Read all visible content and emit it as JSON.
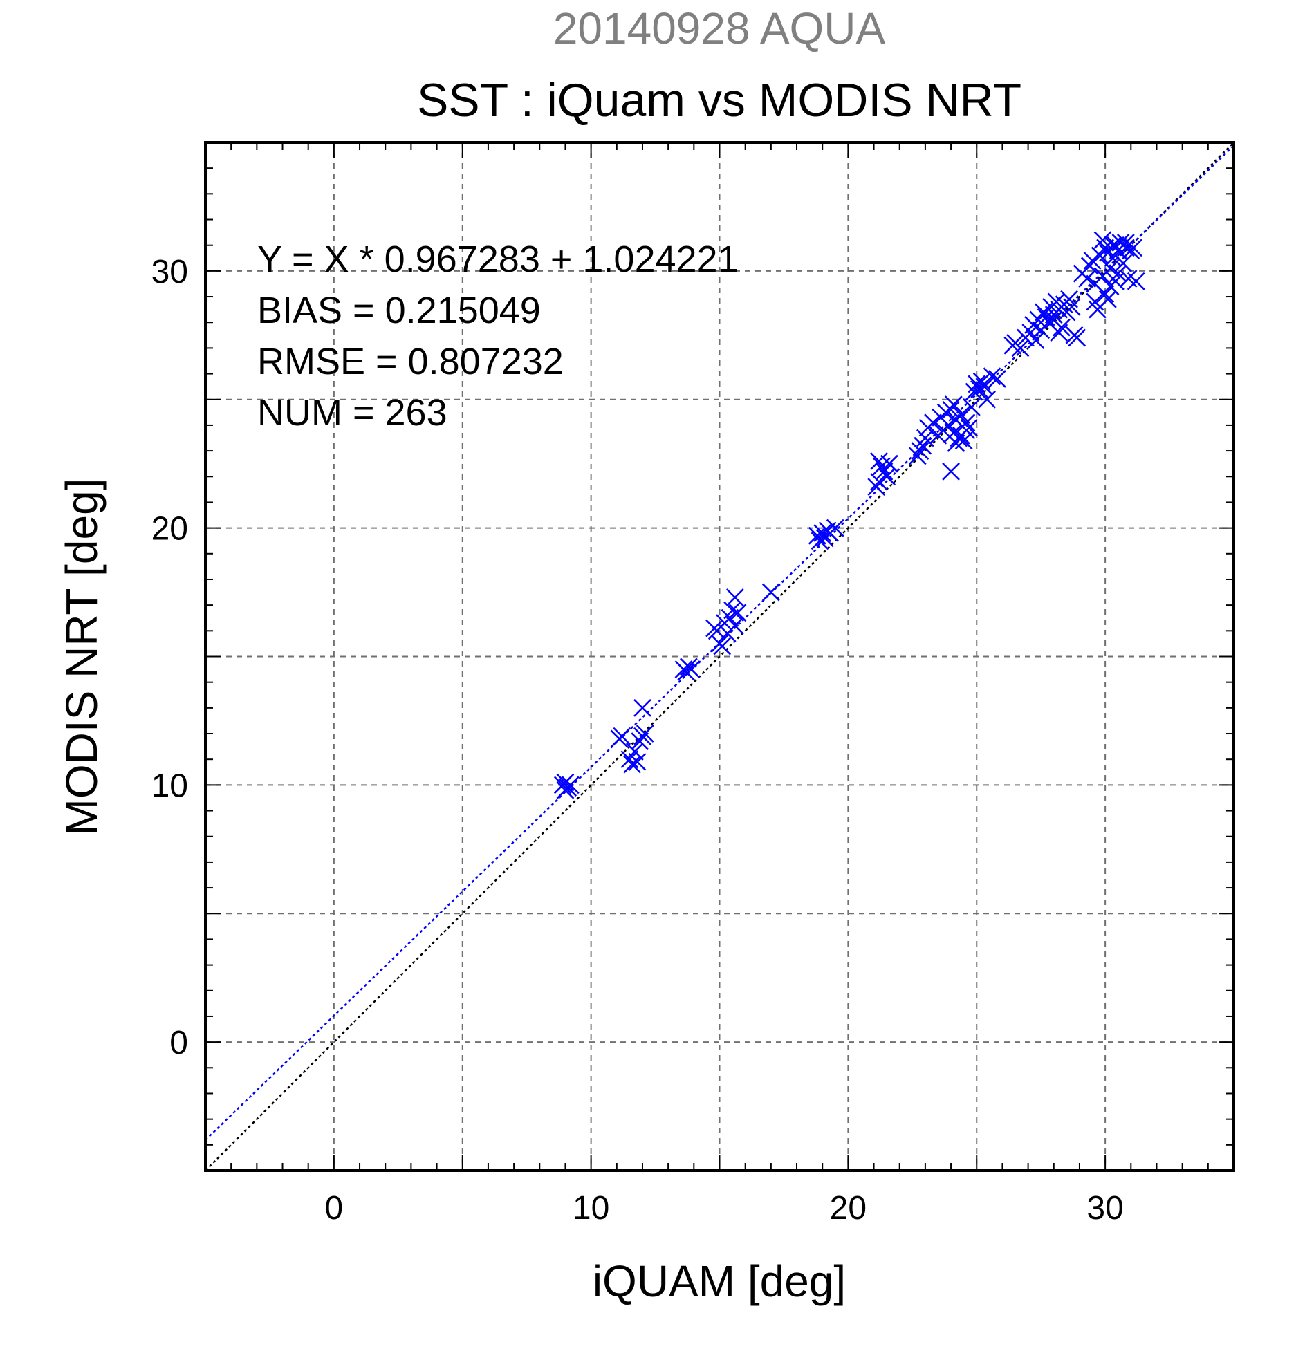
{
  "chart_data": {
    "type": "scatter",
    "title_top": "20140928 AQUA",
    "title": "SST : iQuam vs MODIS NRT",
    "xlabel": "iQUAM [deg]",
    "ylabel": "MODIS NRT [deg]",
    "xlim": [
      -5,
      35
    ],
    "ylim": [
      -5,
      35
    ],
    "xticks": [
      0,
      10,
      20,
      30
    ],
    "yticks": [
      0,
      10,
      20,
      30
    ],
    "minor_step": 1,
    "grid": true,
    "grid_step": 5,
    "stats": [
      "Y = X * 0.967283 + 1.024221",
      "BIAS = 0.215049",
      "RMSE = 0.807232",
      "NUM = 263"
    ],
    "fit": {
      "slope": 0.967283,
      "intercept": 1.024221,
      "color": "#0000ff"
    },
    "identity_line": {
      "slope": 1,
      "intercept": 0,
      "color": "#000000"
    },
    "marker": "x",
    "marker_color": "#0000ff",
    "points": [
      [
        8.9,
        10.0
      ],
      [
        9.0,
        10.1
      ],
      [
        9.1,
        9.9
      ],
      [
        9.2,
        10.0
      ],
      [
        9.0,
        9.8
      ],
      [
        11.1,
        11.8
      ],
      [
        11.2,
        11.9
      ],
      [
        11.5,
        11.0
      ],
      [
        11.6,
        10.8
      ],
      [
        11.7,
        11.3
      ],
      [
        11.8,
        10.9
      ],
      [
        11.9,
        11.7
      ],
      [
        12.0,
        11.9
      ],
      [
        12.1,
        12.0
      ],
      [
        12.0,
        13.0
      ],
      [
        13.6,
        14.5
      ],
      [
        13.7,
        14.4
      ],
      [
        13.8,
        14.6
      ],
      [
        13.9,
        14.5
      ],
      [
        14.8,
        16.1
      ],
      [
        14.9,
        16.0
      ],
      [
        15.0,
        15.5
      ],
      [
        15.1,
        15.4
      ],
      [
        15.2,
        16.3
      ],
      [
        15.3,
        15.9
      ],
      [
        15.4,
        16.5
      ],
      [
        15.5,
        16.8
      ],
      [
        15.6,
        16.2
      ],
      [
        15.7,
        16.7
      ],
      [
        15.6,
        17.3
      ],
      [
        17.0,
        17.5
      ],
      [
        18.8,
        19.7
      ],
      [
        18.9,
        19.5
      ],
      [
        19.0,
        19.8
      ],
      [
        19.1,
        19.6
      ],
      [
        19.2,
        19.9
      ],
      [
        19.3,
        19.8
      ],
      [
        19.5,
        20.0
      ],
      [
        21.1,
        21.6
      ],
      [
        21.2,
        21.8
      ],
      [
        21.3,
        22.4
      ],
      [
        21.4,
        22.2
      ],
      [
        21.5,
        22.0
      ],
      [
        21.6,
        22.5
      ],
      [
        21.2,
        22.6
      ],
      [
        22.7,
        22.8
      ],
      [
        22.8,
        23.0
      ],
      [
        22.9,
        23.2
      ],
      [
        23.0,
        23.5
      ],
      [
        23.1,
        23.9
      ],
      [
        23.3,
        24.1
      ],
      [
        23.5,
        23.6
      ],
      [
        23.6,
        24.3
      ],
      [
        23.7,
        23.8
      ],
      [
        23.8,
        24.5
      ],
      [
        23.9,
        24.0
      ],
      [
        24.0,
        22.2
      ],
      [
        24.0,
        24.6
      ],
      [
        24.1,
        23.7
      ],
      [
        24.2,
        24.2
      ],
      [
        24.3,
        23.5
      ],
      [
        24.4,
        24.4
      ],
      [
        24.5,
        23.4
      ],
      [
        24.6,
        24.1
      ],
      [
        24.7,
        23.9
      ],
      [
        24.8,
        24.7
      ],
      [
        24.2,
        23.3
      ],
      [
        24.4,
        23.6
      ],
      [
        24.6,
        23.8
      ],
      [
        24.1,
        24.8
      ],
      [
        24.9,
        25.3
      ],
      [
        25.0,
        25.6
      ],
      [
        25.1,
        25.4
      ],
      [
        25.2,
        25.7
      ],
      [
        25.3,
        25.5
      ],
      [
        25.4,
        25.0
      ],
      [
        25.6,
        25.9
      ],
      [
        25.8,
        25.8
      ],
      [
        26.4,
        27.1
      ],
      [
        26.5,
        27.2
      ],
      [
        26.7,
        27.0
      ],
      [
        26.9,
        27.4
      ],
      [
        27.1,
        27.6
      ],
      [
        27.2,
        27.9
      ],
      [
        27.3,
        27.3
      ],
      [
        27.4,
        28.1
      ],
      [
        27.5,
        27.7
      ],
      [
        27.6,
        28.4
      ],
      [
        27.7,
        28.2
      ],
      [
        27.8,
        28.0
      ],
      [
        27.9,
        28.6
      ],
      [
        28.0,
        28.3
      ],
      [
        28.1,
        28.8
      ],
      [
        28.2,
        28.5
      ],
      [
        28.3,
        27.8
      ],
      [
        28.4,
        28.7
      ],
      [
        28.5,
        28.4
      ],
      [
        28.6,
        28.9
      ],
      [
        28.7,
        28.6
      ],
      [
        28.8,
        27.5
      ],
      [
        28.9,
        27.4
      ],
      [
        28.2,
        27.6
      ],
      [
        28.0,
        28.1
      ],
      [
        29.1,
        29.9
      ],
      [
        29.3,
        29.7
      ],
      [
        29.4,
        30.2
      ],
      [
        29.5,
        30.4
      ],
      [
        29.6,
        29.5
      ],
      [
        29.7,
        28.5
      ],
      [
        29.8,
        30.6
      ],
      [
        29.9,
        29.8
      ],
      [
        30.0,
        30.9
      ],
      [
        30.0,
        29.1
      ],
      [
        30.1,
        30.7
      ],
      [
        30.1,
        28.9
      ],
      [
        30.2,
        30.1
      ],
      [
        30.2,
        29.4
      ],
      [
        30.3,
        31.0
      ],
      [
        30.3,
        30.5
      ],
      [
        30.4,
        29.6
      ],
      [
        30.5,
        30.8
      ],
      [
        30.5,
        29.9
      ],
      [
        30.6,
        31.1
      ],
      [
        30.7,
        30.3
      ],
      [
        30.8,
        30.9
      ],
      [
        30.9,
        29.7
      ],
      [
        31.0,
        30.8
      ],
      [
        31.2,
        29.6
      ],
      [
        29.6,
        28.8
      ],
      [
        29.9,
        31.2
      ],
      [
        30.4,
        31.0
      ],
      [
        30.8,
        31.1
      ],
      [
        31.1,
        30.9
      ]
    ]
  }
}
